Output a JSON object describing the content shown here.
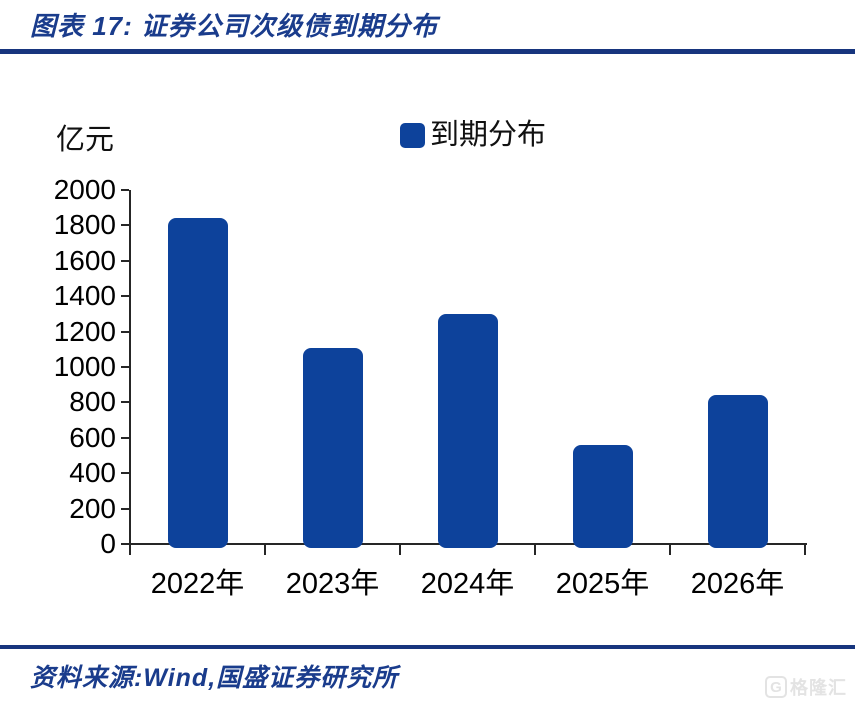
{
  "header": {
    "title": "图表 17: 证券公司次级债到期分布"
  },
  "chart_data": {
    "type": "bar",
    "title": "证券公司次级债到期分布",
    "unit_label": "亿元",
    "categories": [
      "2022年",
      "2023年",
      "2024年",
      "2025年",
      "2026年"
    ],
    "values": [
      1840,
      1110,
      1300,
      560,
      840
    ],
    "ylim": [
      0,
      2000
    ],
    "ytick_step": 200,
    "grid": false,
    "legend": {
      "label": "到期分布",
      "position": "top-center"
    }
  },
  "footer": {
    "source": "资料来源:Wind,国盛证券研究所"
  },
  "watermark": {
    "logo_letter": "G",
    "text": "格隆汇"
  },
  "colors": {
    "bar": "#0D429B",
    "navy_text": "#1A3C8C",
    "rule": "#17357E",
    "axis": "#262626"
  }
}
